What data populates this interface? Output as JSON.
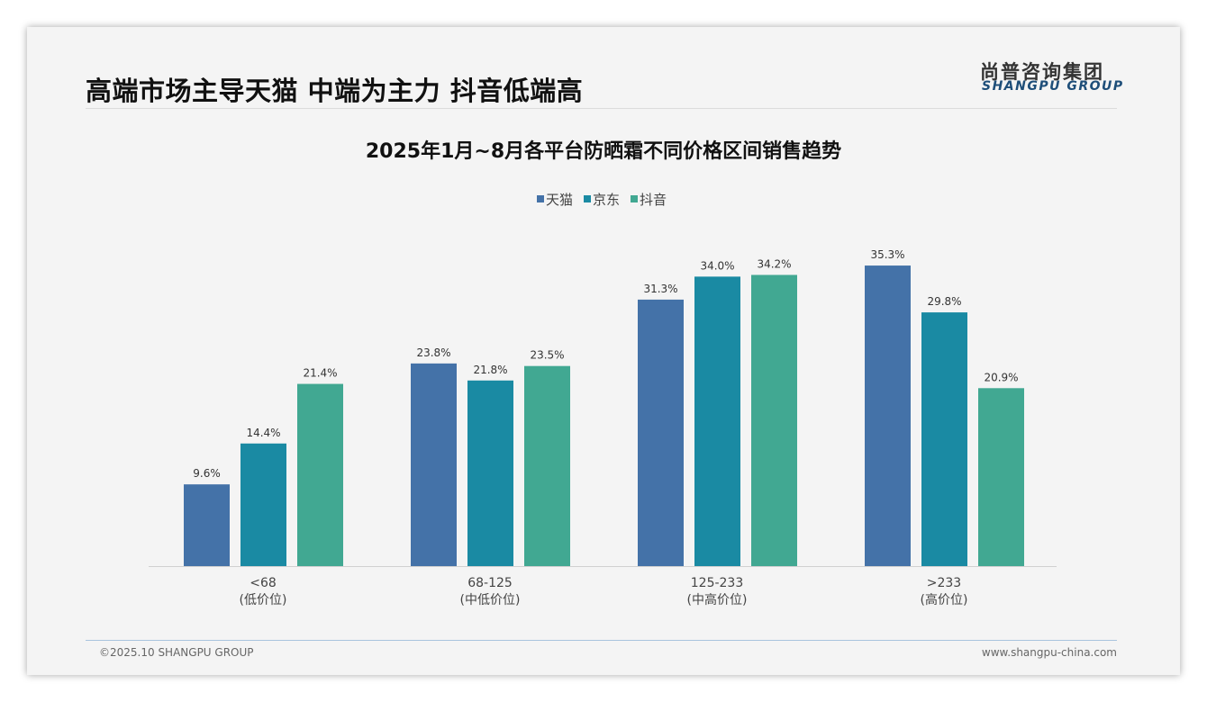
{
  "header": {
    "title": "高端市场主导天猫 中端为主力 抖音低端高",
    "logo_cn": "尚普咨询集团",
    "logo_en": "SHANGPU GROUP"
  },
  "footer": {
    "copyright": "©2025.10 SHANGPU GROUP",
    "url": "www.shangpu-china.com"
  },
  "chart_data": {
    "type": "bar",
    "title": "2025年1月~8月各平台防晒霜不同价格区间销售趋势",
    "categories": [
      "<68",
      "68-125",
      "125-233",
      ">233"
    ],
    "category_sublabels": [
      "(低价位)",
      "(中低价位)",
      "(中高价位)",
      "(高价位)"
    ],
    "series": [
      {
        "name": "天猫",
        "color": "#4472a8",
        "values": [
          9.6,
          23.8,
          31.3,
          35.3
        ]
      },
      {
        "name": "京东",
        "color": "#1a8aa3",
        "values": [
          14.4,
          21.8,
          34.0,
          29.8
        ]
      },
      {
        "name": "抖音",
        "color": "#41a892",
        "values": [
          21.4,
          23.5,
          34.2,
          20.9
        ]
      }
    ],
    "unit": "%",
    "legend_position": "top-center",
    "grid": false
  }
}
